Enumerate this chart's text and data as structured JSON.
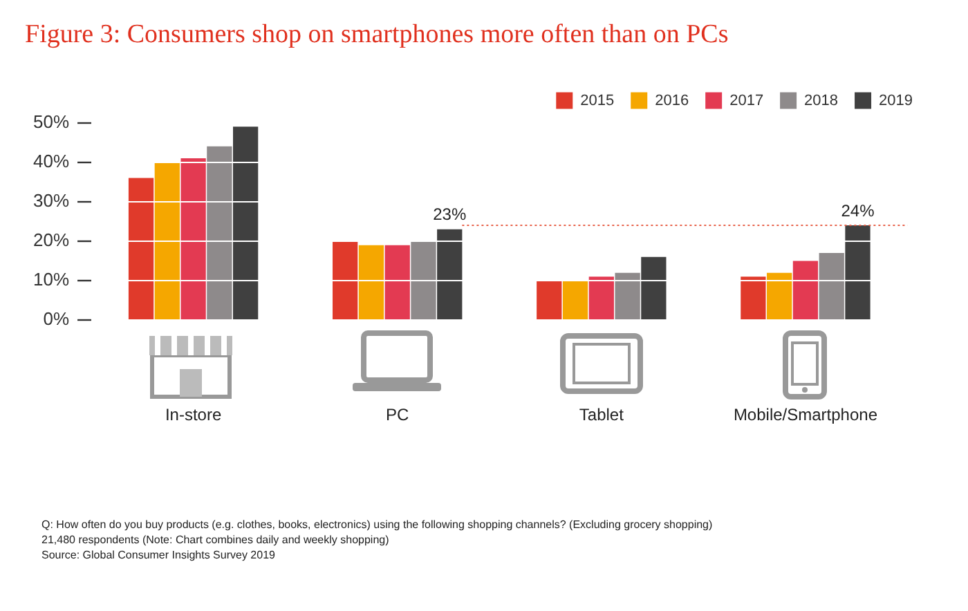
{
  "chart_data": {
    "type": "bar",
    "title": "Figure 3: Consumers shop on smartphones more often than on PCs",
    "categories": [
      "In-store",
      "PC",
      "Tablet",
      "Mobile/Smartphone"
    ],
    "series": [
      {
        "name": "2015",
        "color": "#e03a2b",
        "values": [
          36,
          20,
          10,
          11
        ]
      },
      {
        "name": "2016",
        "color": "#f5a700",
        "values": [
          40,
          19,
          10,
          12
        ]
      },
      {
        "name": "2017",
        "color": "#e33a52",
        "values": [
          41,
          19,
          11,
          15
        ]
      },
      {
        "name": "2018",
        "color": "#8e8a8b",
        "values": [
          44,
          20,
          12,
          17
        ]
      },
      {
        "name": "2019",
        "color": "#404040",
        "values": [
          49,
          23,
          16,
          24
        ],
        "value_labels": [
          null,
          "23%",
          null,
          "24%"
        ]
      }
    ],
    "ylim": [
      0,
      50
    ],
    "yticks": [
      {
        "value": 0,
        "label": "0%"
      },
      {
        "value": 10,
        "label": "10%"
      },
      {
        "value": 20,
        "label": "20%"
      },
      {
        "value": 30,
        "label": "30%"
      },
      {
        "value": 40,
        "label": "40%"
      },
      {
        "value": 50,
        "label": "50%"
      }
    ],
    "ref_lines": [
      {
        "axis": "y",
        "value": 24,
        "color": "#e8624a",
        "line_style": "dotted"
      }
    ],
    "grid": "y",
    "legend": "top right",
    "annotations": [
      "Q: How often do you buy products (e.g. clothes, books, electronics) using the following shopping channels? (Excluding grocery shopping)",
      "21,480 respondents (Note: Chart combines daily and weekly shopping)",
      "Source: Global Consumer Insights Survey 2019"
    ]
  }
}
